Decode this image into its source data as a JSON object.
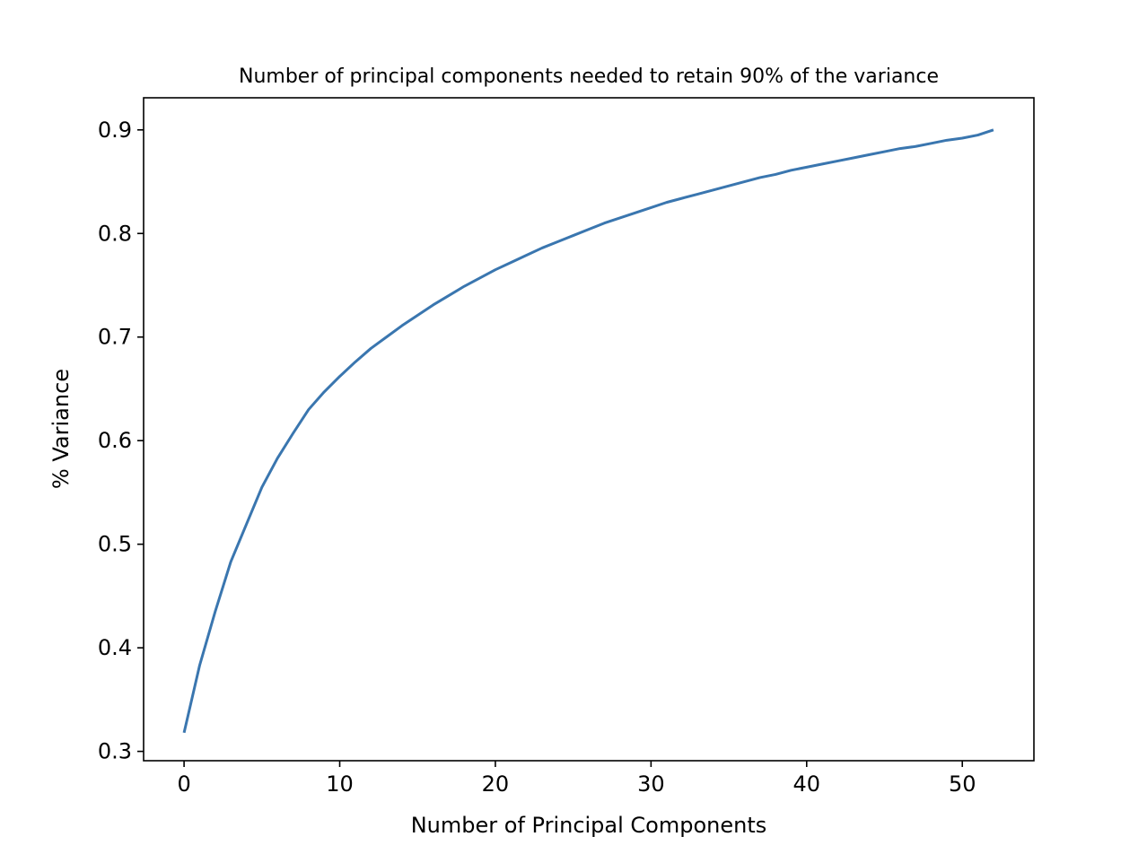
{
  "chart_data": {
    "type": "line",
    "title": "Number of principal components needed to retain 90% of the variance",
    "xlabel": "Number of Principal Components",
    "ylabel": "% Variance",
    "xlim": [
      -2.6,
      54.6
    ],
    "ylim": [
      0.291,
      0.931
    ],
    "xticks": [
      0,
      10,
      20,
      30,
      40,
      50
    ],
    "xtick_labels": [
      "0",
      "10",
      "20",
      "30",
      "40",
      "50"
    ],
    "yticks": [
      0.3,
      0.4,
      0.5,
      0.6,
      0.7,
      0.8,
      0.9
    ],
    "ytick_labels": [
      "0.3",
      "0.4",
      "0.5",
      "0.6",
      "0.7",
      "0.8",
      "0.9"
    ],
    "grid": false,
    "legend": "none",
    "line_color": "#3a76af",
    "x": [
      0,
      1,
      2,
      3,
      4,
      5,
      6,
      7,
      8,
      9,
      10,
      11,
      12,
      13,
      14,
      15,
      16,
      17,
      18,
      19,
      20,
      21,
      22,
      23,
      24,
      25,
      26,
      27,
      28,
      29,
      30,
      31,
      32,
      33,
      34,
      35,
      36,
      37,
      38,
      39,
      40,
      41,
      42,
      43,
      44,
      45,
      46,
      47,
      48,
      49,
      50,
      51,
      52
    ],
    "y": [
      0.318,
      0.383,
      0.435,
      0.483,
      0.519,
      0.555,
      0.583,
      0.607,
      0.63,
      0.647,
      0.662,
      0.676,
      0.689,
      0.7,
      0.711,
      0.721,
      0.731,
      0.74,
      0.749,
      0.757,
      0.765,
      0.772,
      0.779,
      0.786,
      0.792,
      0.798,
      0.804,
      0.81,
      0.815,
      0.82,
      0.825,
      0.83,
      0.834,
      0.838,
      0.842,
      0.846,
      0.85,
      0.854,
      0.857,
      0.861,
      0.864,
      0.867,
      0.87,
      0.873,
      0.876,
      0.879,
      0.882,
      0.884,
      0.887,
      0.89,
      0.892,
      0.895,
      0.9
    ]
  }
}
